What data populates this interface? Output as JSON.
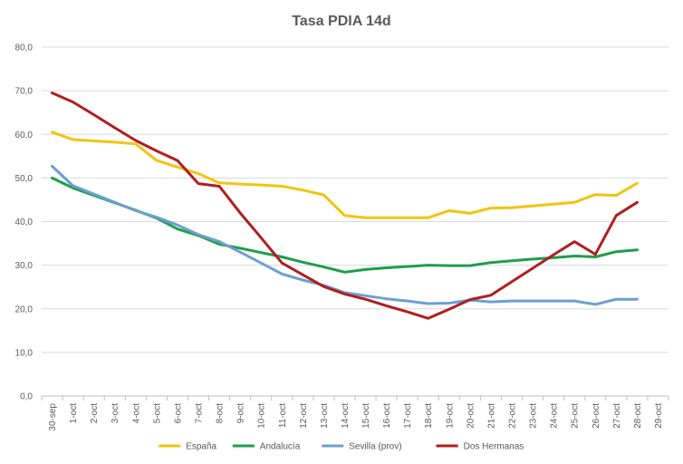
{
  "chart_data": {
    "type": "line",
    "title": "Tasa PDIA 14d",
    "xlabel": "",
    "ylabel": "",
    "ylim": [
      0,
      80
    ],
    "yticks": [
      "0,0",
      "10,0",
      "20,0",
      "30,0",
      "40,0",
      "50,0",
      "60,0",
      "70,0",
      "80,0"
    ],
    "categories": [
      "30-sep",
      "1-oct",
      "2-oct",
      "3-oct",
      "4-oct",
      "5-oct",
      "6-oct",
      "7-oct",
      "8-oct",
      "9-oct",
      "10-oct",
      "11-oct",
      "12-oct",
      "13-oct",
      "14-oct",
      "15-oct",
      "16-oct",
      "17-oct",
      "18-oct",
      "19-oct",
      "20-oct",
      "21-oct",
      "22-oct",
      "23-oct",
      "24-oct",
      "25-oct",
      "26-oct",
      "27-oct",
      "28-oct",
      "29-oct"
    ],
    "grid": true,
    "legend_position": "bottom",
    "series": [
      {
        "name": "España",
        "color": "#f2c40f",
        "values": [
          60.5,
          58.8,
          58.5,
          58.2,
          57.8,
          54.0,
          52.5,
          51.0,
          48.9,
          48.6,
          48.4,
          48.1,
          47.2,
          46.1,
          41.4,
          40.9,
          40.9,
          40.9,
          40.9,
          42.5,
          41.9,
          43.1,
          43.2,
          43.6,
          44.0,
          44.4,
          46.2,
          46.0,
          48.8,
          null
        ]
      },
      {
        "name": "Andalucía",
        "color": "#1e9e4b",
        "values": [
          50.0,
          47.7,
          46.0,
          44.3,
          42.6,
          40.8,
          38.3,
          36.8,
          34.8,
          33.9,
          32.9,
          31.9,
          30.7,
          29.6,
          28.4,
          29.0,
          29.4,
          29.7,
          30.0,
          29.9,
          29.9,
          30.6,
          31.0,
          31.4,
          31.7,
          32.1,
          31.9,
          33.1,
          33.5,
          null
        ]
      },
      {
        "name": "Sevilla (prov)",
        "color": "#6c9fd0",
        "values": [
          52.7,
          48.2,
          46.3,
          44.4,
          42.5,
          41.0,
          39.2,
          37.0,
          35.4,
          33.0,
          30.5,
          28.0,
          26.6,
          25.4,
          23.7,
          23.0,
          22.3,
          21.8,
          21.2,
          21.3,
          22.0,
          21.6,
          21.8,
          21.8,
          21.8,
          21.8,
          21.0,
          22.2,
          22.2,
          null
        ]
      },
      {
        "name": "Dos Hermanas",
        "color": "#b01e1e",
        "values": [
          69.5,
          67.4,
          64.5,
          61.5,
          58.6,
          56.2,
          54.0,
          48.7,
          48.1,
          42.0,
          36.3,
          30.5,
          27.8,
          25.1,
          23.4,
          22.2,
          20.7,
          19.3,
          17.8,
          19.9,
          22.1,
          23.1,
          26.2,
          29.3,
          32.4,
          35.4,
          32.5,
          41.4,
          44.4,
          null
        ]
      }
    ]
  }
}
